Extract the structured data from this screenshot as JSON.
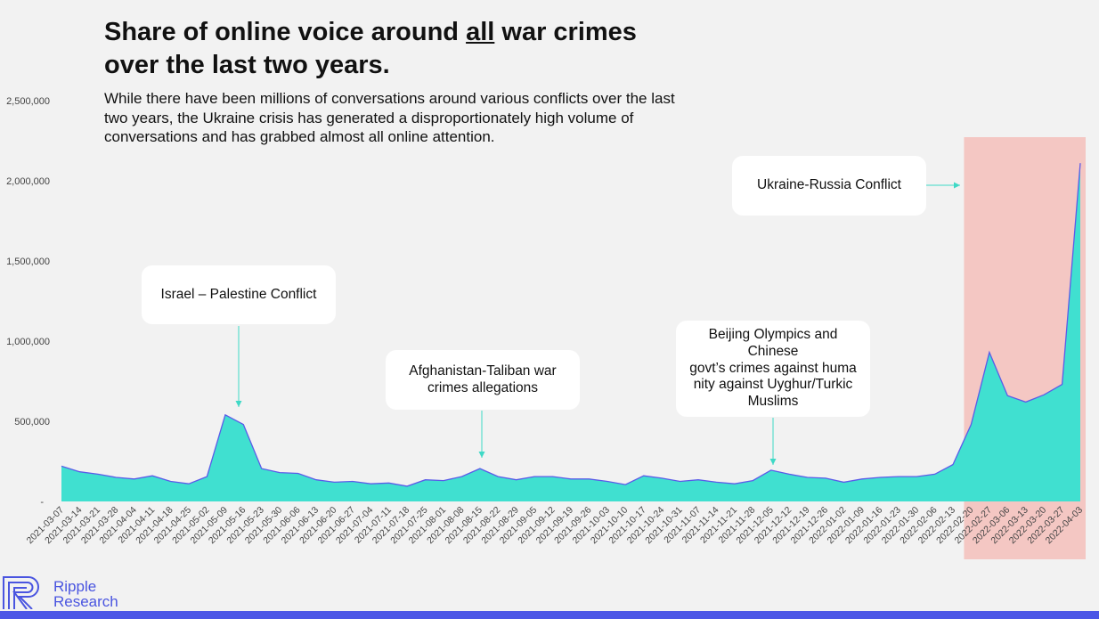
{
  "title": {
    "line1_a": "Share of online voice around ",
    "line1_u": "all",
    "line1_b": " war crimes",
    "line2": "over the last two years."
  },
  "subtitle": "While there have been millions of conversations around various conflicts over the last two years, the Ukraine crisis has generated a disproportionately high volume of conversations and has grabbed almost all online attention.",
  "colors": {
    "area_fill": "#40e0d0",
    "area_stroke": "#5b5be8",
    "highlight": "#f4c7c3",
    "axis_text": "#444444",
    "arrow": "#3fd9c6",
    "brand": "#4a55e0"
  },
  "callouts": [
    {
      "id": "israel",
      "lines": [
        "Israel – Palestine Conflict"
      ]
    },
    {
      "id": "afghanistan",
      "lines": [
        "Afghanistan-Taliban war",
        "crimes allegations"
      ]
    },
    {
      "id": "beijing",
      "lines": [
        "Beijing Olympics and",
        "Chinese",
        "govt’s crimes against huma",
        "nity against Uyghur/Turkic",
        "Muslims"
      ]
    },
    {
      "id": "ukraine",
      "lines": [
        "Ukraine-Russia Conflict"
      ]
    }
  ],
  "logo": {
    "line1": "Ripple",
    "line2": "Research",
    "icon": "ripple-logo-icon"
  },
  "chart_data": {
    "type": "area",
    "title": "",
    "xlabel": "",
    "ylabel": "",
    "ylim": [
      0,
      2500000
    ],
    "yticks": [
      0,
      500000,
      1000000,
      1500000,
      2000000,
      2500000
    ],
    "ytick_labels": [
      "-",
      "500,000",
      "1,000,000",
      "1,500,000",
      "2,000,000",
      "2,500,000"
    ],
    "highlight_range": [
      "2022-02-20",
      "2022-04-03"
    ],
    "grid": false,
    "x": [
      "2021-03-07",
      "2021-03-14",
      "2021-03-21",
      "2021-03-28",
      "2021-04-04",
      "2021-04-11",
      "2021-04-18",
      "2021-04-25",
      "2021-05-02",
      "2021-05-09",
      "2021-05-16",
      "2021-05-23",
      "2021-05-30",
      "2021-06-06",
      "2021-06-13",
      "2021-06-20",
      "2021-06-27",
      "2021-07-04",
      "2021-07-11",
      "2021-07-18",
      "2021-07-25",
      "2021-08-01",
      "2021-08-08",
      "2021-08-15",
      "2021-08-22",
      "2021-08-29",
      "2021-09-05",
      "2021-09-12",
      "2021-09-19",
      "2021-09-26",
      "2021-10-03",
      "2021-10-10",
      "2021-10-17",
      "2021-10-24",
      "2021-10-31",
      "2021-11-07",
      "2021-11-14",
      "2021-11-21",
      "2021-11-28",
      "2021-12-05",
      "2021-12-12",
      "2021-12-19",
      "2021-12-26",
      "2022-01-02",
      "2022-01-09",
      "2022-01-16",
      "2022-01-23",
      "2022-01-30",
      "2022-02-06",
      "2022-02-13",
      "2022-02-20",
      "2022-02-27",
      "2022-03-06",
      "2022-03-13",
      "2022-03-20",
      "2022-03-27",
      "2022-04-03"
    ],
    "values": [
      220000,
      185000,
      170000,
      150000,
      140000,
      160000,
      125000,
      110000,
      155000,
      540000,
      480000,
      205000,
      180000,
      175000,
      135000,
      120000,
      125000,
      110000,
      115000,
      95000,
      135000,
      130000,
      155000,
      205000,
      155000,
      135000,
      155000,
      155000,
      140000,
      140000,
      125000,
      105000,
      160000,
      145000,
      125000,
      135000,
      120000,
      110000,
      130000,
      195000,
      170000,
      150000,
      145000,
      120000,
      140000,
      150000,
      155000,
      155000,
      170000,
      230000,
      480000,
      930000,
      660000,
      620000,
      665000,
      730000,
      2110000
    ]
  }
}
